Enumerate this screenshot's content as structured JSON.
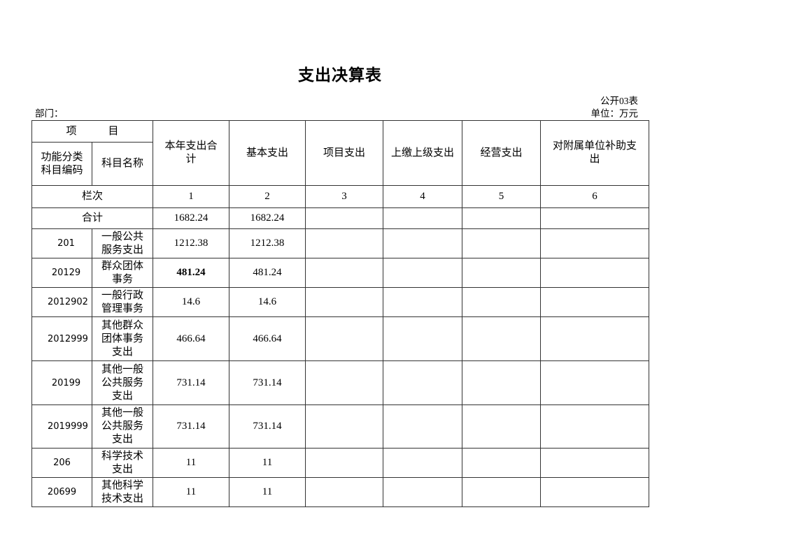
{
  "page": {
    "title": "支出决算表",
    "doc_label": "公开03表",
    "department_label": "部门：",
    "unit_label": "单位：万元"
  },
  "table": {
    "header": {
      "item_group": "项　　　目",
      "code_col": "功能分类科目编码",
      "name_col": "科目名称",
      "columns": [
        "本年支出合计",
        "基本支出",
        "项目支出",
        "上缴上级支出",
        "经营支出",
        "对附属单位补助支出"
      ],
      "lanci_label": "栏次",
      "column_numbers": [
        "1",
        "2",
        "3",
        "4",
        "5",
        "6"
      ]
    },
    "total_row": {
      "label": "合计",
      "values": [
        "1682.24",
        "1682.24",
        "",
        "",
        "",
        ""
      ]
    },
    "rows": [
      {
        "code": "201",
        "name": "一般公共服务支出",
        "indent": true,
        "values": [
          "1212.38",
          "1212.38",
          "",
          "",
          "",
          ""
        ],
        "bold_value": -1
      },
      {
        "code": "20129",
        "name": "群众团体事务",
        "indent": true,
        "values": [
          "481.24",
          "481.24",
          "",
          "",
          "",
          ""
        ],
        "bold_value": 0
      },
      {
        "code": "2012902",
        "name": "一般行政管理事务",
        "indent": true,
        "values": [
          "14.6",
          "14.6",
          "",
          "",
          "",
          ""
        ],
        "bold_value": -1
      },
      {
        "code": "2012999",
        "name": "其他群众团体事务支出",
        "indent": true,
        "values": [
          "466.64",
          "466.64",
          "",
          "",
          "",
          ""
        ],
        "bold_value": -1
      },
      {
        "code": "20199",
        "name": "其他一般公共服务支出",
        "indent": true,
        "values": [
          "731.14",
          "731.14",
          "",
          "",
          "",
          ""
        ],
        "bold_value": -1
      },
      {
        "code": "2019999",
        "name": "其他一般公共服务支出",
        "indent": true,
        "values": [
          "731.14",
          "731.14",
          "",
          "",
          "",
          ""
        ],
        "bold_value": -1
      },
      {
        "code": "206",
        "name": "科学技术支出",
        "indent": false,
        "values": [
          "11",
          "11",
          "",
          "",
          "",
          ""
        ],
        "bold_value": -1
      },
      {
        "code": "20699",
        "name": "其他科学技术支出",
        "indent": false,
        "values": [
          "11",
          "11",
          "",
          "",
          "",
          ""
        ],
        "bold_value": -1
      }
    ]
  }
}
